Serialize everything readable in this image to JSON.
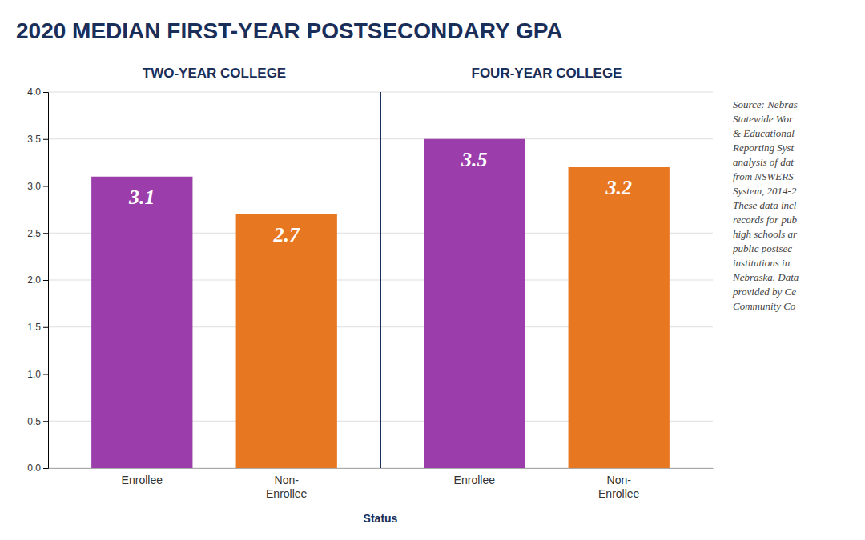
{
  "chart_data": {
    "type": "bar",
    "title": "2020 MEDIAN FIRST-YEAR POSTSECONDARY GPA",
    "xlabel": "Status",
    "groups": [
      {
        "name": "TWO-YEAR COLLEGE",
        "categories": [
          "Enrollee",
          "Non-\nEnrollee"
        ],
        "values": [
          3.1,
          2.7
        ],
        "colors": [
          "#9b3dab",
          "#e87722"
        ]
      },
      {
        "name": "FOUR-YEAR COLLEGE",
        "categories": [
          "Enrollee",
          "Non-\nEnrollee"
        ],
        "values": [
          3.5,
          3.2
        ],
        "colors": [
          "#9b3dab",
          "#e87722"
        ]
      }
    ],
    "ylim": [
      0,
      4.0
    ],
    "yticks": [
      {
        "value": 0.0,
        "label": "0.0"
      },
      0.5,
      {
        "value": 1.0,
        "label": "1.0"
      },
      1.5,
      {
        "value": 2.0,
        "label": "2.0"
      },
      2.5,
      {
        "value": 3.0,
        "label": "3.0"
      },
      3.5,
      {
        "value": 4.0,
        "label": "4.0"
      }
    ],
    "grid": true,
    "data_labels": true,
    "source": [
      "Source: Nebras",
      "Statewide Wor",
      "& Educational",
      "Reporting Syst",
      "analysis of dat",
      "from NSWERS",
      "System, 2014-2",
      "These data incl",
      "records for pub",
      "high schools ar",
      "public postsec",
      "institutions in",
      "Nebraska. Data",
      "provided by Ce",
      "Community Co"
    ]
  }
}
